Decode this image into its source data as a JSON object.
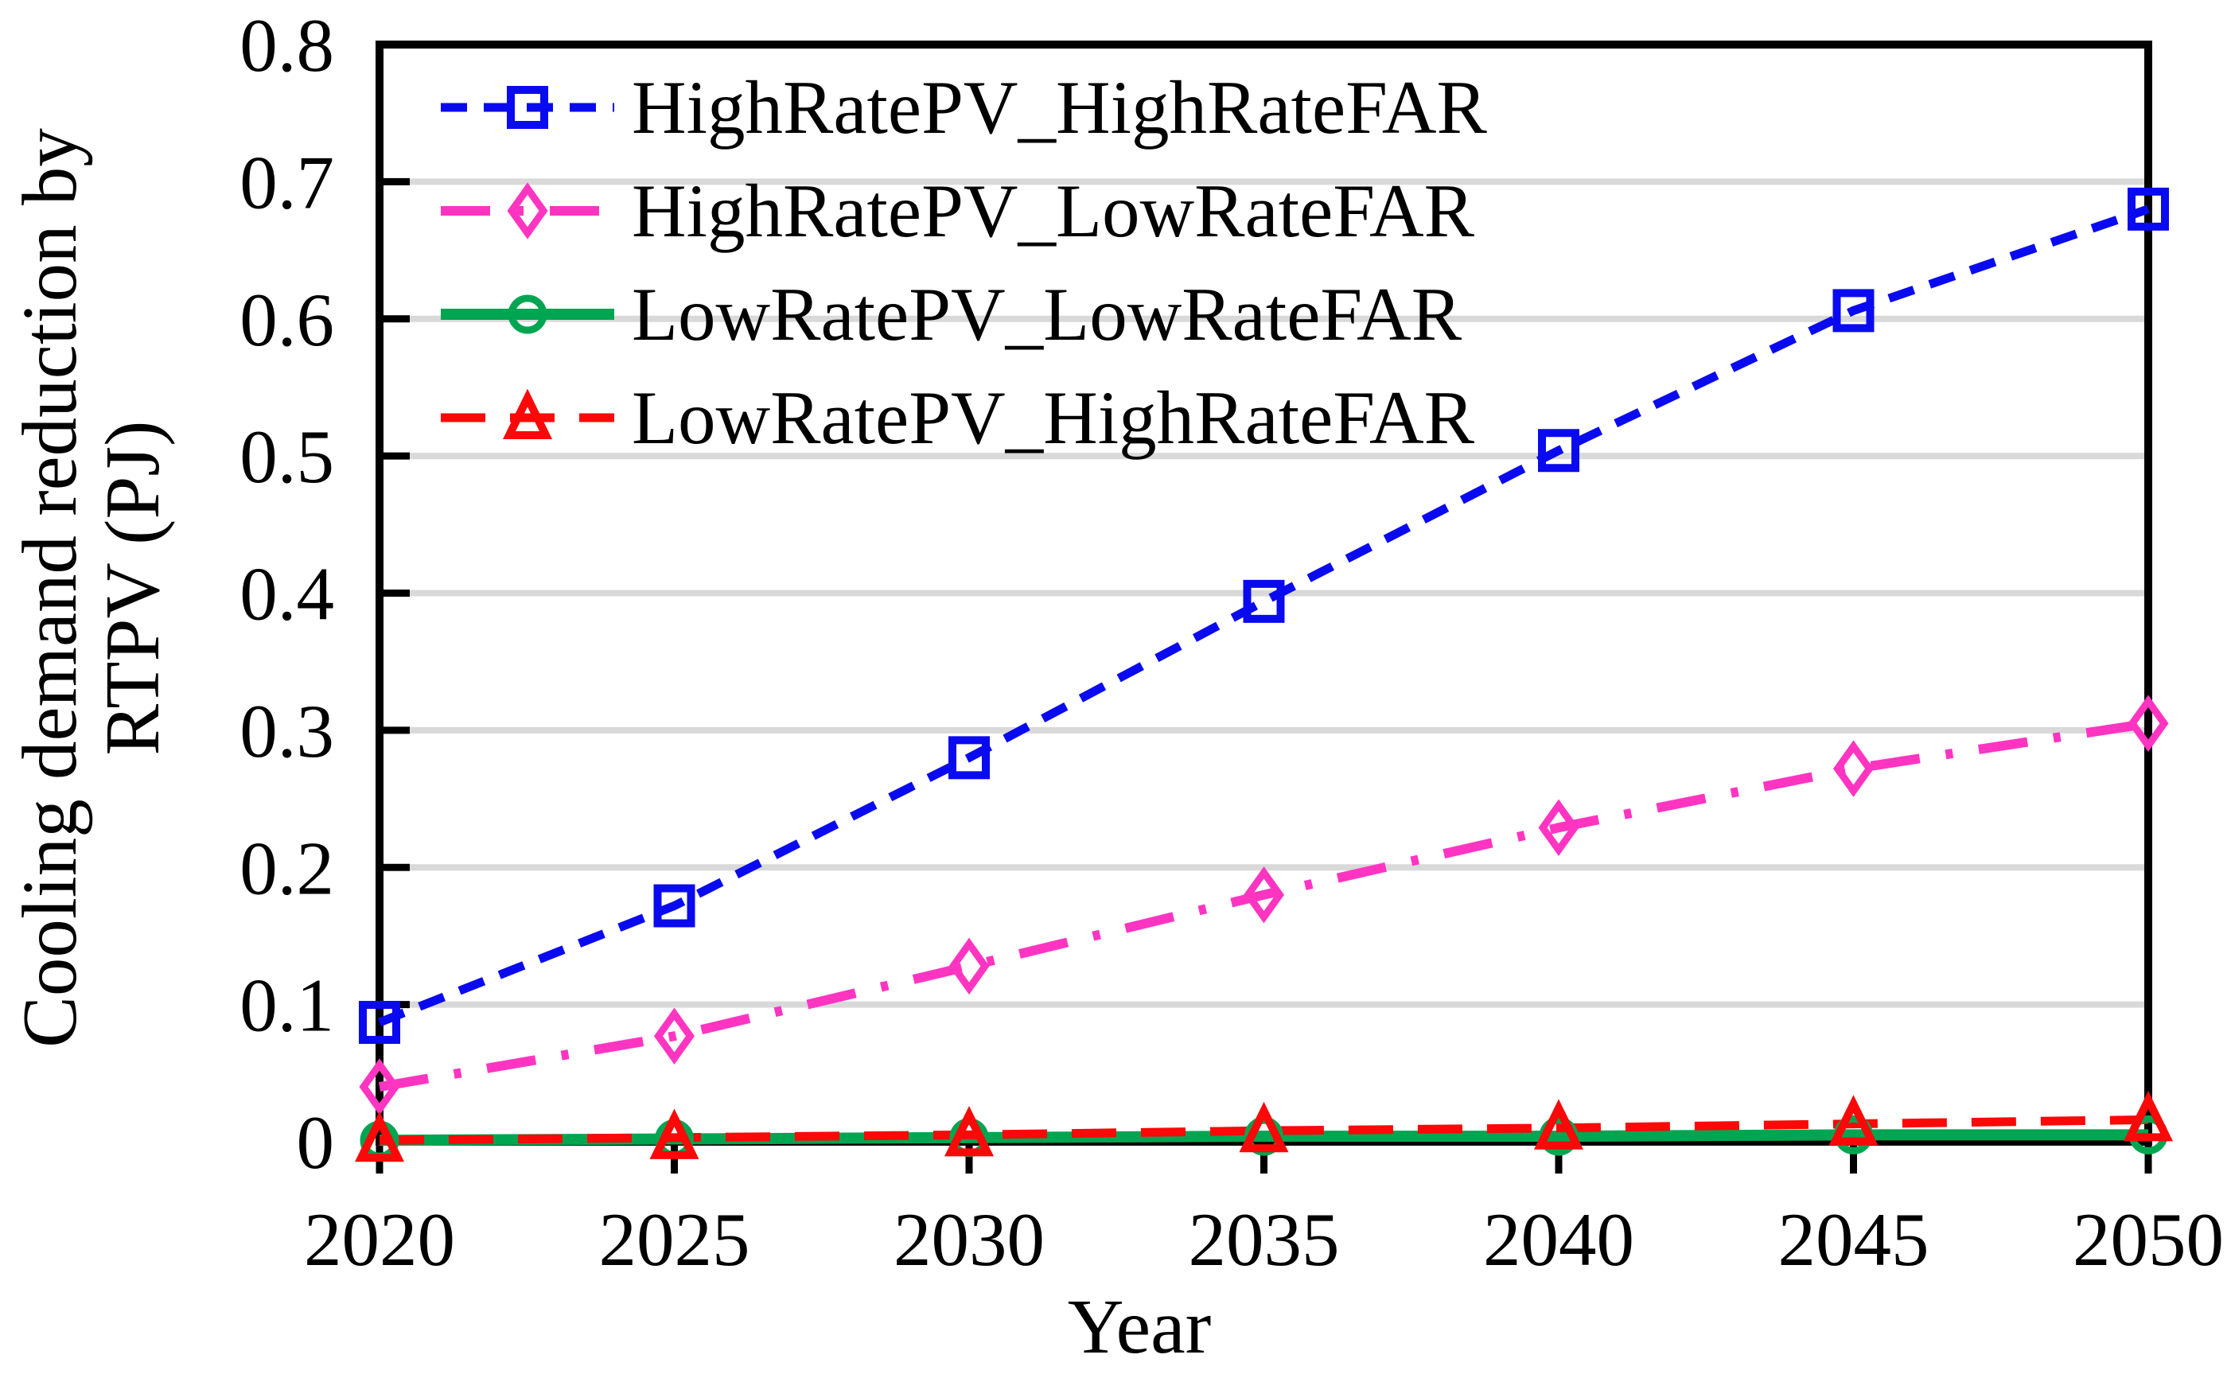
{
  "figure": {
    "xlabel": "Year",
    "ylabel_lines": [
      "Cooling demand reduction by",
      "RTPV (PJ)"
    ]
  },
  "chart_data": {
    "type": "line",
    "title": "",
    "xlabel": "Year",
    "ylabel": "Cooling demand reduction by RTPV (PJ)",
    "x": [
      2020,
      2025,
      2030,
      2035,
      2040,
      2045,
      2050
    ],
    "xlim": [
      2020,
      2050
    ],
    "ylim": [
      0,
      0.8
    ],
    "yticks": [
      0,
      0.1,
      0.2,
      0.3,
      0.4,
      0.5,
      0.6,
      0.7,
      0.8
    ],
    "ytick_labels": [
      "0",
      "0.1",
      "0.2",
      "0.3",
      "0.4",
      "0.5",
      "0.6",
      "0.7",
      "0.8"
    ],
    "grid": true,
    "gridline_color": "#d9d9d9",
    "axis_color": "#000000",
    "legend_position": "top-left-inside",
    "series": [
      {
        "name": "HighRatePV_HighRateFAR",
        "color": "#0a0af0",
        "line_style": "dashed",
        "dash": "33 21",
        "line_width": 11,
        "marker": "square",
        "values": [
          0.087,
          0.172,
          0.28,
          0.394,
          0.504,
          0.606,
          0.68
        ]
      },
      {
        "name": "HighRatePV_LowRateFAR",
        "color": "#ff35c2",
        "line_style": "dash-dot",
        "dash": "62 33 9 33",
        "line_width": 12,
        "marker": "diamond",
        "values": [
          0.04,
          0.077,
          0.128,
          0.18,
          0.229,
          0.272,
          0.305
        ]
      },
      {
        "name": "LowRatePV_LowRateFAR",
        "color": "#00a551",
        "line_style": "solid",
        "dash": "",
        "line_width": 14,
        "marker": "circle",
        "values": [
          0.001,
          0.002,
          0.003,
          0.004,
          0.004,
          0.005,
          0.005
        ]
      },
      {
        "name": "LowRatePV_HighRateFAR",
        "color": "#fb0808",
        "line_style": "dashed",
        "dash": "56 31",
        "line_width": 11,
        "marker": "triangle",
        "values": [
          0.001,
          0.003,
          0.005,
          0.008,
          0.01,
          0.013,
          0.016
        ]
      }
    ]
  }
}
